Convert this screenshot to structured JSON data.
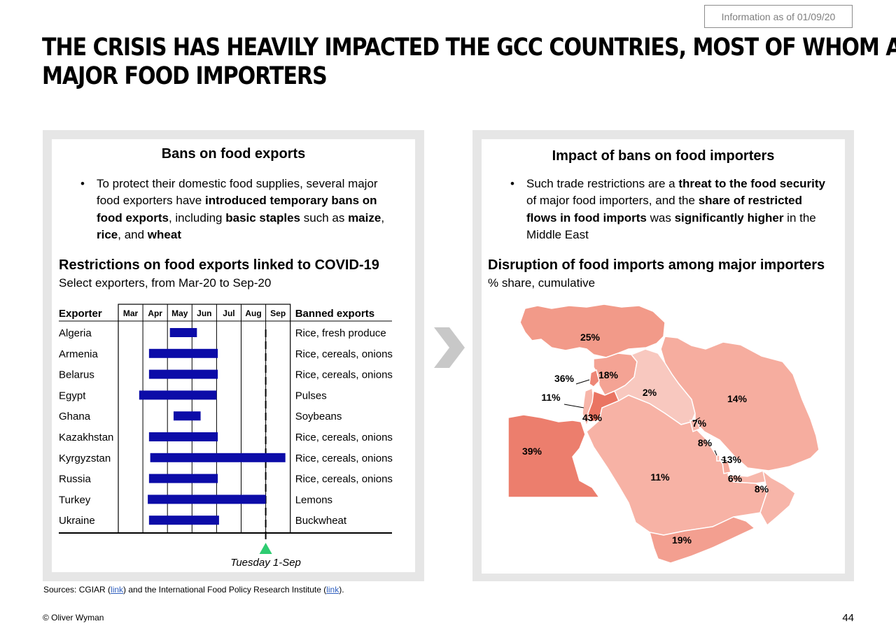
{
  "info_box": "Information as of 01/09/20",
  "title_lines": [
    "THE CRISIS HAS HEAVILY IMPACTED THE GCC COUNTRIES, MOST OF WHOM ARE",
    "MAJOR FOOD IMPORTERS"
  ],
  "left": {
    "heading": "Bans on food exports",
    "bullet": [
      {
        "t": "To protect their domestic food supplies, several major food exporters have ",
        "b": false
      },
      {
        "t": "introduced temporary bans on food exports",
        "b": true
      },
      {
        "t": ", including ",
        "b": false
      },
      {
        "t": "basic staples",
        "b": true
      },
      {
        "t": " such as ",
        "b": false
      },
      {
        "t": "maize",
        "b": true
      },
      {
        "t": ", ",
        "b": false
      },
      {
        "t": "rice",
        "b": true
      },
      {
        "t": ", and ",
        "b": false
      },
      {
        "t": "wheat",
        "b": true
      }
    ],
    "section_title": "Restrictions on food exports linked to COVID-19",
    "section_subtitle": "Select exporters, from Mar-20 to Sep-20"
  },
  "right": {
    "heading": "Impact of bans on food importers",
    "bullet": [
      {
        "t": "Such trade restrictions are a ",
        "b": false
      },
      {
        "t": "threat to the food security",
        "b": true
      },
      {
        "t": " of major food importers, and the ",
        "b": false
      },
      {
        "t": "share of restricted flows in food imports",
        "b": true
      },
      {
        "t": " was ",
        "b": false
      },
      {
        "t": "significantly higher",
        "b": true
      },
      {
        "t": " in the Middle East",
        "b": false
      }
    ],
    "section_title": "Disruption of food imports among major importers",
    "section_subtitle": "% share, cumulative"
  },
  "chart_data": [
    {
      "type": "gantt",
      "col_header_left": "Exporter",
      "col_header_right": "Banned exports",
      "months": [
        "Mar",
        "Apr",
        "May",
        "Jun",
        "Jul",
        "Aug",
        "Sep"
      ],
      "rows": [
        {
          "exporter": "Algeria",
          "start": 2.1,
          "end": 3.2,
          "banned": "Rice, fresh produce"
        },
        {
          "exporter": "Armenia",
          "start": 1.25,
          "end": 4.05,
          "banned": "Rice, cereals, onions"
        },
        {
          "exporter": "Belarus",
          "start": 1.25,
          "end": 4.05,
          "banned": "Rice, cereals, onions"
        },
        {
          "exporter": "Egypt",
          "start": 0.85,
          "end": 4.0,
          "banned": "Pulses"
        },
        {
          "exporter": "Ghana",
          "start": 2.25,
          "end": 3.35,
          "banned": "Soybeans"
        },
        {
          "exporter": "Kazakhstan",
          "start": 1.25,
          "end": 4.05,
          "banned": "Rice, cereals, onions"
        },
        {
          "exporter": "Kyrgyzstan",
          "start": 1.3,
          "end": 6.8,
          "banned": "Rice, cereals, onions"
        },
        {
          "exporter": "Russia",
          "start": 1.25,
          "end": 4.05,
          "banned": "Rice, cereals, onions"
        },
        {
          "exporter": "Turkey",
          "start": 1.2,
          "end": 6.0,
          "banned": "Lemons"
        },
        {
          "exporter": "Ukraine",
          "start": 1.25,
          "end": 4.1,
          "banned": "Buckwheat"
        }
      ],
      "marker": {
        "value": 6.0,
        "label": "Tuesday 1-Sep"
      },
      "colors": {
        "bar": "#0c0ca8",
        "marker": "#2ecc71"
      }
    },
    {
      "type": "map",
      "regions": [
        {
          "name": "Turkey",
          "value": "25%",
          "color": "#f29a89"
        },
        {
          "name": "Lebanon",
          "value": "36%",
          "color": "#ee8777"
        },
        {
          "name": "Israel",
          "value": "11%",
          "color": "#f7b5a9"
        },
        {
          "name": "Syria",
          "value": "18%",
          "color": "#f4a394"
        },
        {
          "name": "Iraq",
          "value": "2%",
          "color": "#f8c8bf"
        },
        {
          "name": "Iran",
          "value": "14%",
          "color": "#f6ad9f"
        },
        {
          "name": "Jordan",
          "value": "43%",
          "color": "#ea7462"
        },
        {
          "name": "Egypt",
          "value": "39%",
          "color": "#ec7e6d"
        },
        {
          "name": "Kuwait",
          "value": "7%",
          "color": "#f7b8ac"
        },
        {
          "name": "Bahrain",
          "value": "8%",
          "color": "#f7b5a9"
        },
        {
          "name": "Qatar",
          "value": "13%",
          "color": "#f6ab9d"
        },
        {
          "name": "UAE",
          "value": "6%",
          "color": "#f7b8ac"
        },
        {
          "name": "Oman",
          "value": "8%",
          "color": "#f7b5a9"
        },
        {
          "name": "Saudi Arabia",
          "value": "11%",
          "color": "#f7b2a5"
        },
        {
          "name": "Yemen",
          "value": "19%",
          "color": "#f39f90"
        }
      ]
    }
  ],
  "sources": [
    {
      "t": "Sources: CGIAR (",
      "link": false
    },
    {
      "t": "link",
      "link": true
    },
    {
      "t": ") and the International Food Policy Research Institute (",
      "link": false
    },
    {
      "t": "link",
      "link": true
    },
    {
      "t": ").",
      "link": false
    }
  ],
  "copyright": "© Oliver Wyman",
  "page_number": "44"
}
